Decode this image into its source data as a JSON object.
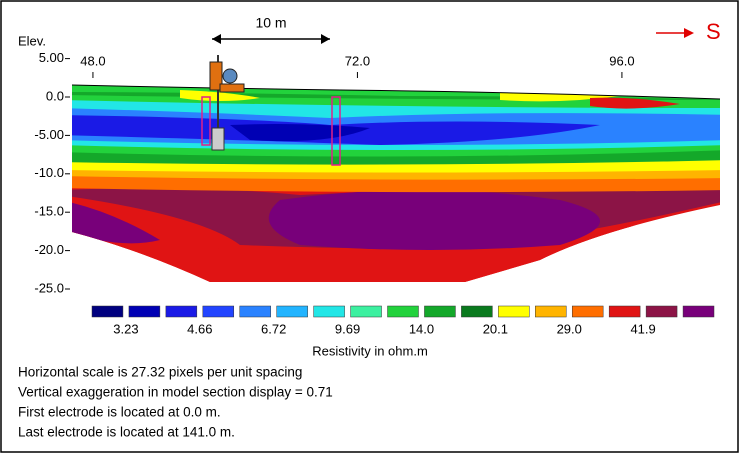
{
  "chart_data": {
    "type": "resistivity-section",
    "y_label": "Elev.",
    "scale_label": "10 m",
    "direction_label": "S",
    "xlim": [
      46.1,
      104.9
    ],
    "xticks": [
      {
        "value": 48,
        "label": "48.0"
      },
      {
        "value": 72,
        "label": "72.0"
      },
      {
        "value": 96,
        "label": "96.0"
      }
    ],
    "ylim": [
      -25,
      5
    ],
    "yticks": [
      {
        "value": 5,
        "label": "5.00"
      },
      {
        "value": 0,
        "label": "0.0"
      },
      {
        "value": -5,
        "label": "-5.00"
      },
      {
        "value": -10,
        "label": "-10.0"
      },
      {
        "value": -15,
        "label": "-15.0"
      },
      {
        "value": -20,
        "label": "-20.0"
      },
      {
        "value": -25,
        "label": "-25.0"
      }
    ],
    "colorbar": {
      "label": "Resistivity in ohm.m",
      "colors": [
        "#00007f",
        "#0000b4",
        "#1a1ae6",
        "#2244ff",
        "#2a82ff",
        "#22b4ff",
        "#22e6e6",
        "#3cf0a0",
        "#22d23c",
        "#14a82a",
        "#0a7a1e",
        "#ffff00",
        "#ffb400",
        "#ff6e00",
        "#e01414",
        "#8c1446",
        "#78007a"
      ],
      "ticks": [
        3.23,
        4.66,
        6.72,
        9.69,
        {
          "value": 14,
          "label": "14.0"
        },
        20.1,
        {
          "value": 29,
          "label": "29.0"
        },
        41.9
      ]
    },
    "notes": [
      "Horizontal scale is 27.32 pixels per unit spacing",
      "Vertical exaggeration in model section display = 0.71",
      "First electrode is located at 0.0  m.",
      "Last electrode is located at 141.0 m."
    ]
  }
}
